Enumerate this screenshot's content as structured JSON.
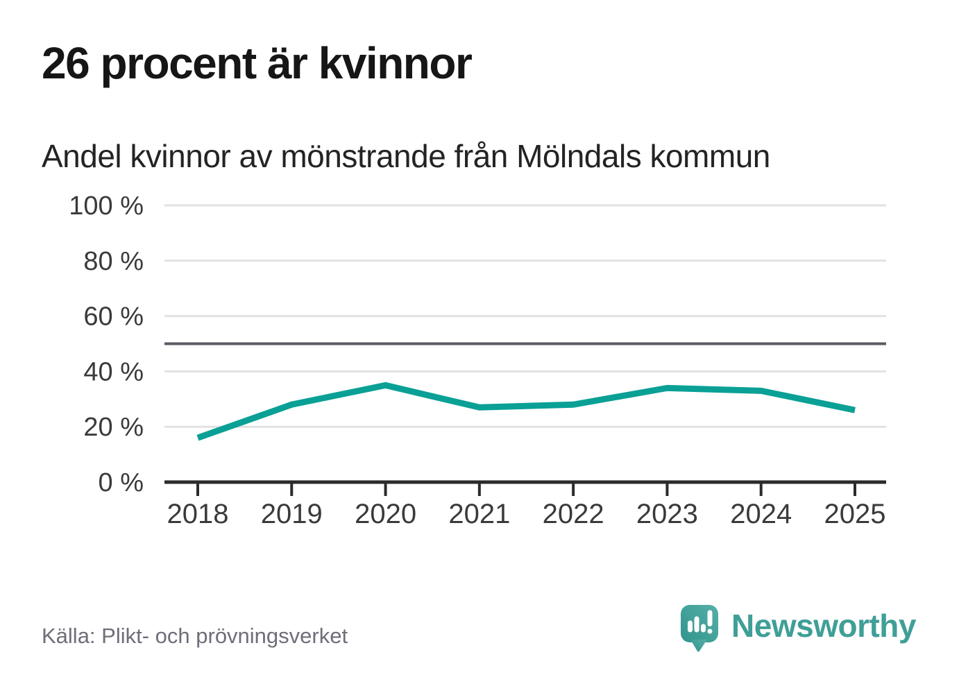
{
  "chart_data": {
    "type": "line",
    "title": "26 procent är kvinnor",
    "subtitle": "Andel kvinnor av mönstrande från Mölndals kommun",
    "x": [
      "2018",
      "2019",
      "2020",
      "2021",
      "2022",
      "2023",
      "2024",
      "2025"
    ],
    "series": [
      {
        "name": "Andel kvinnor av mönstrande",
        "values": [
          16,
          28,
          35,
          27,
          28,
          34,
          33,
          26
        ]
      }
    ],
    "unit": "%",
    "ylim": [
      0,
      100
    ],
    "yticks": [
      0,
      20,
      40,
      60,
      80,
      100
    ],
    "ytick_suffix": " %",
    "reference_line": 50,
    "grid": "horizontal",
    "legend": "none",
    "colors": {
      "line": "#0aa096",
      "grid": "#e2e2e2",
      "reference": "#5b5b64",
      "axis": "#2b2b2b",
      "tick_label": "#3a3a3a"
    }
  },
  "footer": {
    "source": "Källa: Plikt- och prövningsverket",
    "brand": "Newsworthy",
    "brand_color": "#3f9f97",
    "brand_color_light": "#55b0a8",
    "brand_color_dark": "#31948c"
  }
}
